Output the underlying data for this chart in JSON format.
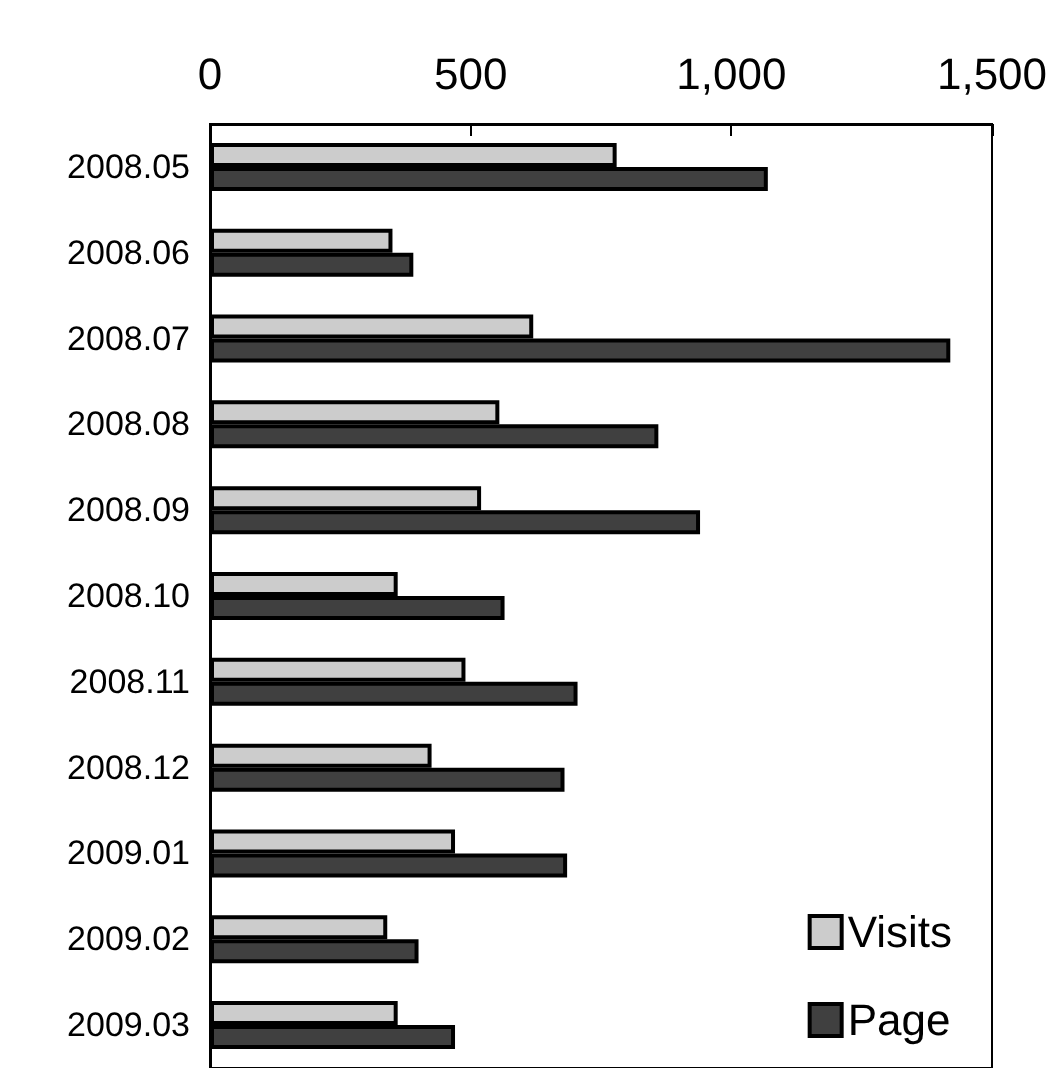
{
  "chart_data": {
    "type": "bar",
    "orientation": "horizontal",
    "categories": [
      "2008.05",
      "2008.06",
      "2008.07",
      "2008.08",
      "2008.09",
      "2008.10",
      "2008.11",
      "2008.12",
      "2009.01",
      "2009.02",
      "2009.03"
    ],
    "series": [
      {
        "name": "Visits",
        "color": "#cccccc",
        "values": [
          780,
          350,
          620,
          555,
          520,
          360,
          490,
          425,
          470,
          340,
          360
        ]
      },
      {
        "name": "Page",
        "color": "#404040",
        "values": [
          1070,
          390,
          1420,
          860,
          940,
          565,
          705,
          680,
          685,
          400,
          470
        ]
      }
    ],
    "xlim": [
      0,
      1500
    ],
    "xticks": [
      0,
      500,
      {
        "value": 1000,
        "label": "1,000"
      },
      {
        "value": 1500,
        "label": "1,500"
      }
    ],
    "grid": false,
    "legend": "bottom right"
  }
}
